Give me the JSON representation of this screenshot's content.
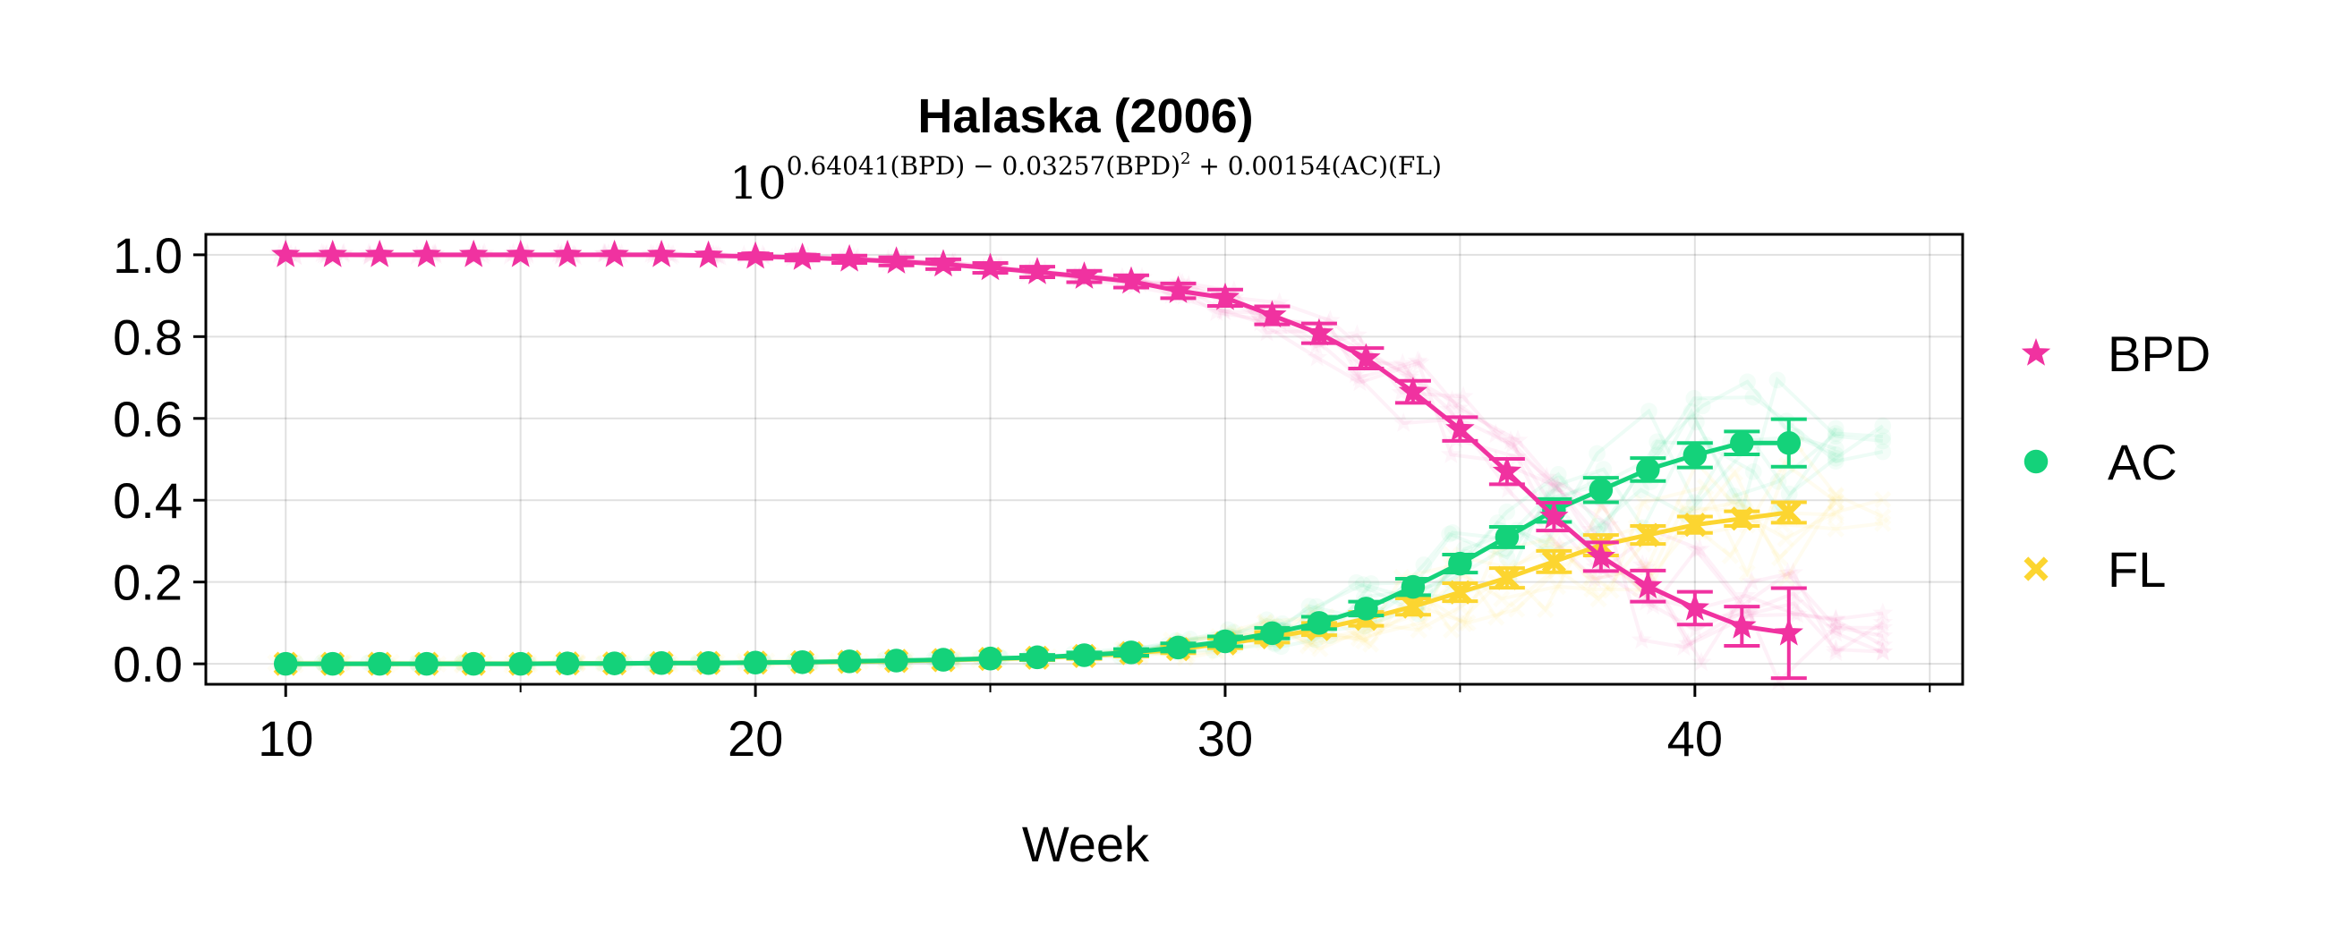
{
  "chart_data": {
    "type": "line",
    "title": "Halaska (2006)",
    "subtitle": {
      "base": "10",
      "exponent_parts": [
        "0.64041(BPD) − 0.03257(BPD)",
        "2",
        " + 0.00154(AC)(FL)"
      ]
    },
    "xlabel": "Week",
    "ylabel": "",
    "xlim": [
      8.3,
      45.7
    ],
    "ylim": [
      -0.05,
      1.05
    ],
    "x_ticks": [
      10,
      20,
      30,
      40
    ],
    "y_ticks": [
      0.0,
      0.2,
      0.4,
      0.6,
      0.8,
      1.0
    ],
    "x_tick_labels": [
      "10",
      "20",
      "30",
      "40"
    ],
    "y_tick_labels": [
      "0.0",
      "0.2",
      "0.4",
      "0.6",
      "0.8",
      "1.0"
    ],
    "grid": true,
    "legend_position": "right",
    "x": [
      10,
      11,
      12,
      13,
      14,
      15,
      16,
      17,
      18,
      19,
      20,
      21,
      22,
      23,
      24,
      25,
      26,
      27,
      28,
      29,
      30,
      31,
      32,
      33,
      34,
      35,
      36,
      37,
      38,
      39,
      40,
      41,
      42
    ],
    "series": [
      {
        "name": "BPD",
        "marker": "star",
        "color": "#f032a0",
        "values": [
          1.0,
          1.0,
          1.0,
          1.0,
          1.0,
          1.0,
          1.0,
          1.0,
          1.0,
          0.998,
          0.996,
          0.993,
          0.989,
          0.984,
          0.977,
          0.968,
          0.958,
          0.947,
          0.935,
          0.912,
          0.895,
          0.852,
          0.808,
          0.747,
          0.665,
          0.574,
          0.47,
          0.36,
          0.262,
          0.19,
          0.136,
          0.092,
          0.075
        ],
        "errors": [
          0.002,
          0.002,
          0.002,
          0.002,
          0.002,
          0.002,
          0.002,
          0.002,
          0.002,
          0.004,
          0.006,
          0.007,
          0.009,
          0.01,
          0.012,
          0.012,
          0.013,
          0.014,
          0.015,
          0.018,
          0.02,
          0.022,
          0.024,
          0.025,
          0.027,
          0.029,
          0.031,
          0.034,
          0.035,
          0.038,
          0.04,
          0.048,
          0.11
        ]
      },
      {
        "name": "AC",
        "marker": "circle",
        "color": "#14d27a",
        "values": [
          0.0,
          0.0,
          0.0,
          0.0,
          0.0,
          0.0,
          0.001,
          0.001,
          0.002,
          0.002,
          0.003,
          0.004,
          0.006,
          0.008,
          0.01,
          0.013,
          0.016,
          0.021,
          0.028,
          0.04,
          0.055,
          0.075,
          0.1,
          0.135,
          0.188,
          0.245,
          0.31,
          0.375,
          0.425,
          0.475,
          0.51,
          0.54,
          0.54
        ],
        "errors": [
          0.002,
          0.002,
          0.002,
          0.002,
          0.002,
          0.002,
          0.002,
          0.002,
          0.002,
          0.003,
          0.003,
          0.003,
          0.003,
          0.004,
          0.004,
          0.005,
          0.006,
          0.007,
          0.008,
          0.01,
          0.012,
          0.013,
          0.015,
          0.017,
          0.02,
          0.022,
          0.025,
          0.028,
          0.03,
          0.028,
          0.03,
          0.028,
          0.058
        ]
      },
      {
        "name": "FL",
        "marker": "x",
        "color": "#fcd530",
        "values": [
          0.0,
          0.0,
          0.0,
          0.0,
          0.0,
          0.0,
          0.001,
          0.001,
          0.002,
          0.002,
          0.003,
          0.004,
          0.005,
          0.007,
          0.009,
          0.012,
          0.015,
          0.019,
          0.026,
          0.036,
          0.05,
          0.065,
          0.085,
          0.11,
          0.14,
          0.175,
          0.21,
          0.25,
          0.29,
          0.315,
          0.34,
          0.355,
          0.37
        ],
        "errors": [
          0.002,
          0.002,
          0.002,
          0.002,
          0.002,
          0.002,
          0.002,
          0.002,
          0.002,
          0.003,
          0.003,
          0.003,
          0.003,
          0.004,
          0.004,
          0.005,
          0.006,
          0.007,
          0.008,
          0.01,
          0.012,
          0.013,
          0.015,
          0.017,
          0.02,
          0.022,
          0.024,
          0.026,
          0.025,
          0.022,
          0.02,
          0.018,
          0.025
        ]
      }
    ]
  }
}
